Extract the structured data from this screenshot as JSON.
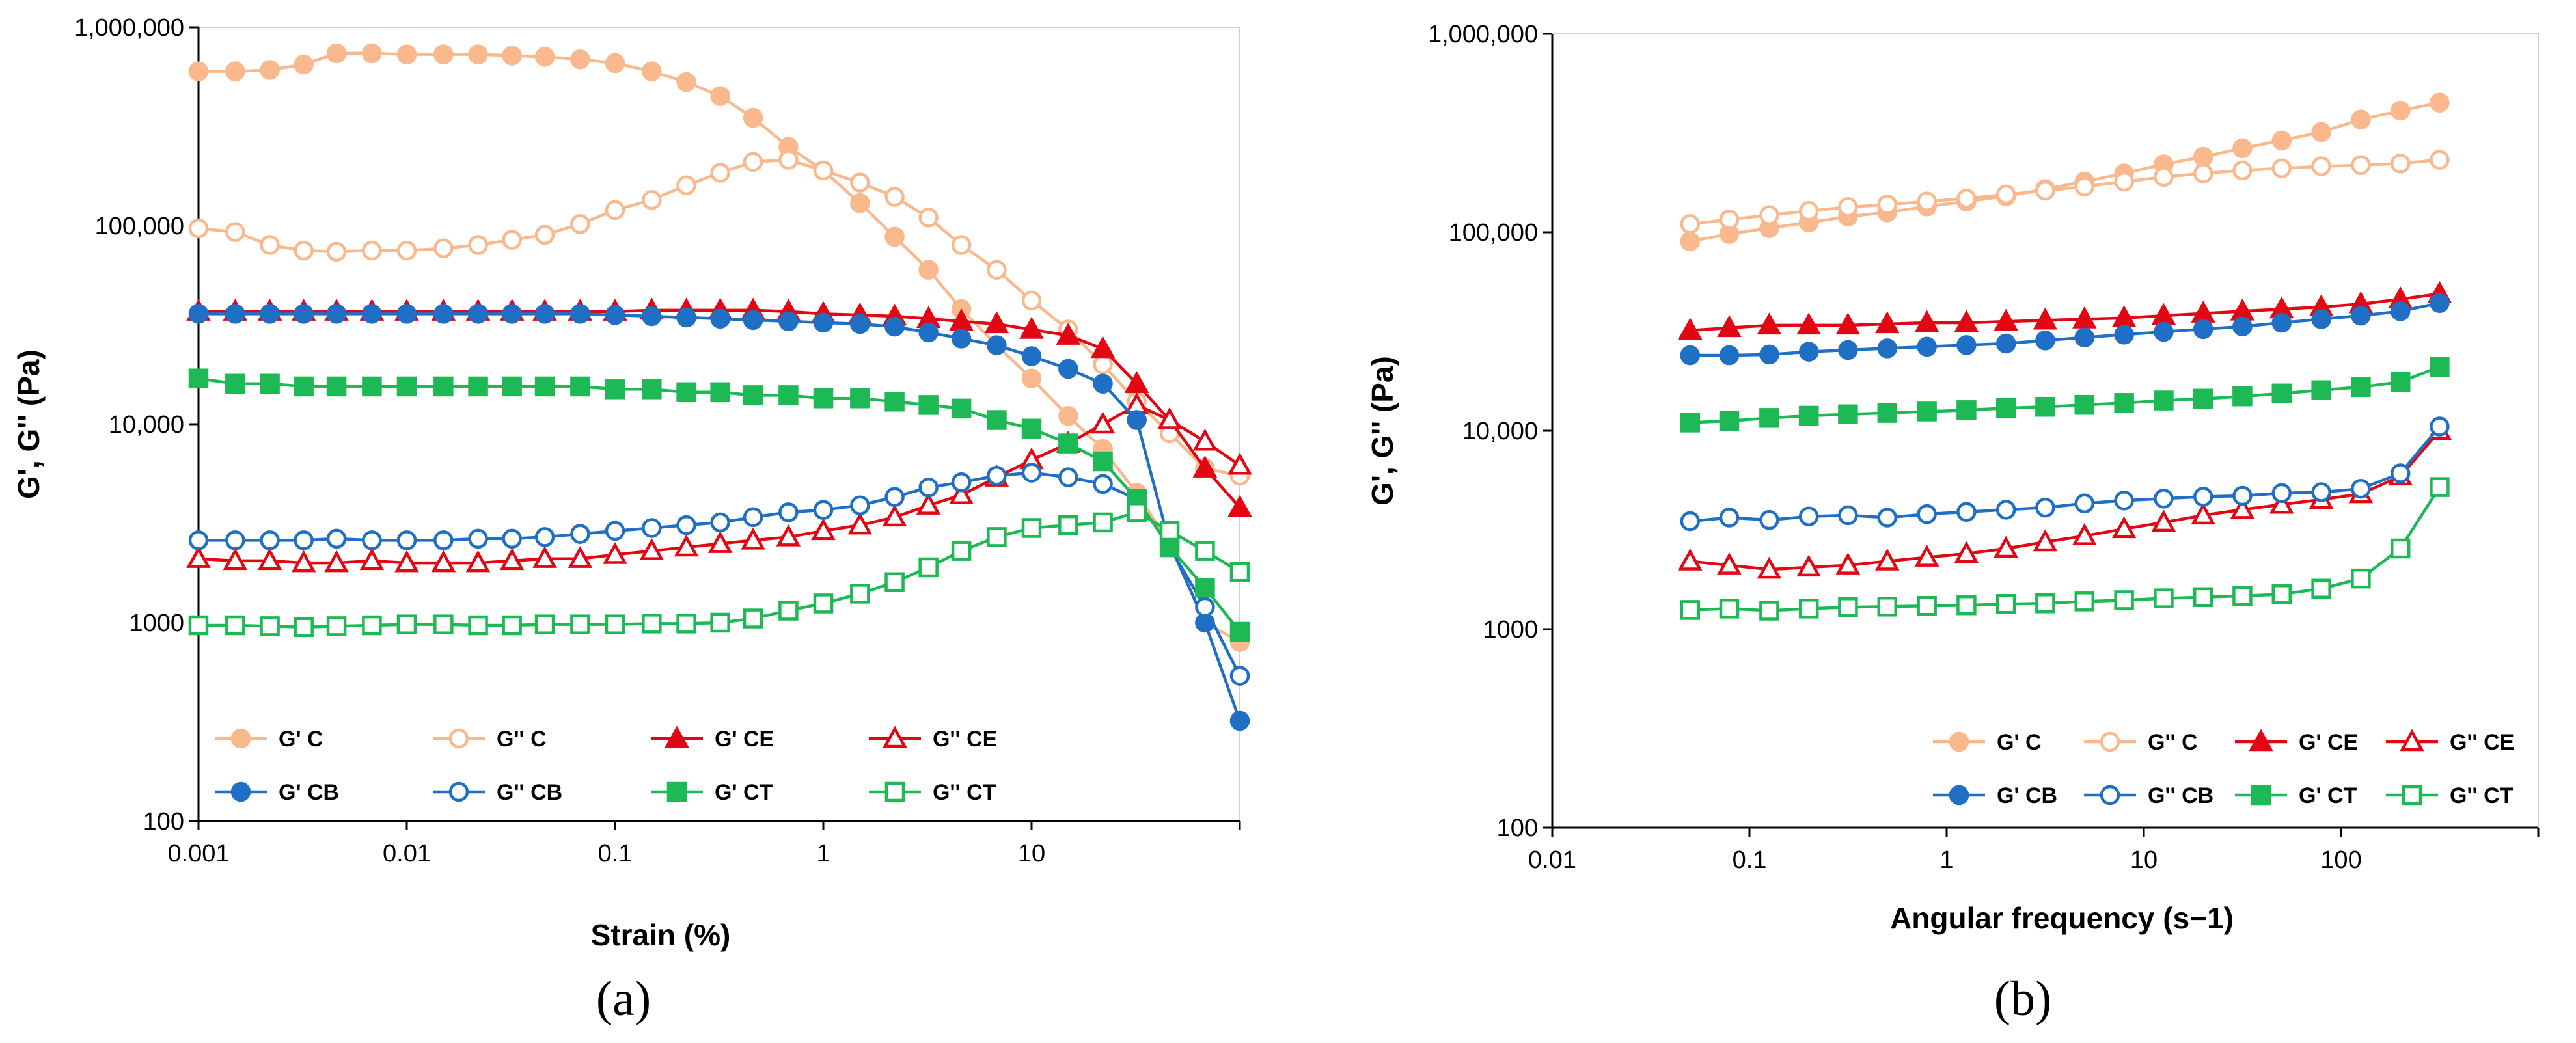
{
  "chart_data": [
    {
      "type": "scatter",
      "panel_label": "(a)",
      "xlabel": "Strain (%)",
      "ylabel": "G', G'' (Pa)",
      "x_scale": "log",
      "y_scale": "log",
      "xlim": [
        0.001,
        100
      ],
      "ylim": [
        100,
        1000000
      ],
      "x_ticks": [
        "0.001",
        "0.01",
        "0.1",
        "1",
        "10"
      ],
      "y_ticks": [
        "100",
        "1000",
        "10,000",
        "100,000",
        "1,000,000"
      ],
      "legend_position": "bottom-left",
      "series": [
        {
          "name": "G' C",
          "marker": "circle",
          "filled": true,
          "color": "#F9B98C",
          "x": [
            0.001,
            0.0015,
            0.0022,
            0.0032,
            0.0046,
            0.0068,
            0.01,
            0.015,
            0.022,
            0.032,
            0.046,
            0.068,
            0.1,
            0.15,
            0.22,
            0.32,
            0.46,
            0.68,
            1.0,
            1.5,
            2.2,
            3.2,
            4.6,
            6.8,
            10,
            15,
            22,
            32,
            46,
            68,
            100
          ],
          "y": [
            600000,
            600000,
            610000,
            650000,
            740000,
            740000,
            730000,
            730000,
            730000,
            720000,
            710000,
            690000,
            660000,
            600000,
            530000,
            450000,
            350000,
            250000,
            190000,
            130000,
            88000,
            60000,
            38000,
            25000,
            17000,
            11000,
            7500,
            4500,
            2500,
            1000,
            800
          ]
        },
        {
          "name": "G'' C",
          "marker": "circle",
          "filled": false,
          "color": "#F9B98C",
          "x": [
            0.001,
            0.0015,
            0.0022,
            0.0032,
            0.0046,
            0.0068,
            0.01,
            0.015,
            0.022,
            0.032,
            0.046,
            0.068,
            0.1,
            0.15,
            0.22,
            0.32,
            0.46,
            0.68,
            1.0,
            1.5,
            2.2,
            3.2,
            4.6,
            6.8,
            10,
            15,
            22,
            32,
            46,
            68,
            100
          ],
          "y": [
            97000,
            93000,
            80000,
            75000,
            74000,
            75000,
            75000,
            77000,
            80000,
            85000,
            90000,
            102000,
            120000,
            135000,
            160000,
            185000,
            210000,
            215000,
            190000,
            165000,
            140000,
            110000,
            80000,
            60000,
            42000,
            30000,
            20000,
            13000,
            9000,
            6000,
            5500
          ]
        },
        {
          "name": "G' CE",
          "marker": "triangle",
          "filled": true,
          "color": "#E30613",
          "x": [
            0.001,
            0.0015,
            0.0022,
            0.0032,
            0.0046,
            0.0068,
            0.01,
            0.015,
            0.022,
            0.032,
            0.046,
            0.068,
            0.1,
            0.15,
            0.22,
            0.32,
            0.46,
            0.68,
            1.0,
            1.5,
            2.2,
            3.2,
            4.6,
            6.8,
            10,
            15,
            22,
            32,
            46,
            68,
            100
          ],
          "y": [
            37000,
            37000,
            37000,
            37000,
            37000,
            37000,
            37000,
            37000,
            37000,
            37000,
            37000,
            37000,
            37000,
            37500,
            37500,
            37500,
            37500,
            37000,
            36000,
            35500,
            35000,
            34000,
            33000,
            32000,
            30000,
            28000,
            24000,
            16000,
            10500,
            6000,
            3800
          ]
        },
        {
          "name": "G'' CE",
          "marker": "triangle",
          "filled": false,
          "color": "#E30613",
          "x": [
            0.001,
            0.0015,
            0.0022,
            0.0032,
            0.0046,
            0.0068,
            0.01,
            0.015,
            0.022,
            0.032,
            0.046,
            0.068,
            0.1,
            0.15,
            0.22,
            0.32,
            0.46,
            0.68,
            1.0,
            1.5,
            2.2,
            3.2,
            4.6,
            6.8,
            10,
            15,
            22,
            32,
            46,
            68,
            100
          ],
          "y": [
            2100,
            2050,
            2050,
            2000,
            2000,
            2050,
            2000,
            2000,
            2000,
            2050,
            2100,
            2100,
            2200,
            2300,
            2400,
            2500,
            2600,
            2700,
            2900,
            3100,
            3400,
            3900,
            4400,
            5400,
            6600,
            8000,
            10000,
            12500,
            10500,
            8200,
            6200
          ]
        },
        {
          "name": "G' CB",
          "marker": "circle",
          "filled": true,
          "color": "#1F6FC5",
          "x": [
            0.001,
            0.0015,
            0.0022,
            0.0032,
            0.0046,
            0.0068,
            0.01,
            0.015,
            0.022,
            0.032,
            0.046,
            0.068,
            0.1,
            0.15,
            0.22,
            0.32,
            0.46,
            0.68,
            1.0,
            1.5,
            2.2,
            3.2,
            4.6,
            6.8,
            10,
            15,
            22,
            32,
            46,
            68,
            100
          ],
          "y": [
            36000,
            36000,
            36000,
            36000,
            36000,
            36000,
            36000,
            36000,
            36000,
            36000,
            36000,
            36000,
            35500,
            35000,
            34500,
            34000,
            33500,
            33000,
            32500,
            32000,
            31000,
            29000,
            27000,
            25000,
            22000,
            19000,
            16000,
            10500,
            2500,
            1000,
            320
          ]
        },
        {
          "name": "G'' CB",
          "marker": "circle",
          "filled": false,
          "color": "#1F6FC5",
          "x": [
            0.001,
            0.0015,
            0.0022,
            0.0032,
            0.0046,
            0.0068,
            0.01,
            0.015,
            0.022,
            0.032,
            0.046,
            0.068,
            0.1,
            0.15,
            0.22,
            0.32,
            0.46,
            0.68,
            1.0,
            1.5,
            2.2,
            3.2,
            4.6,
            6.8,
            10,
            15,
            22,
            32,
            46,
            68,
            100
          ],
          "y": [
            2600,
            2600,
            2600,
            2600,
            2650,
            2600,
            2600,
            2600,
            2650,
            2650,
            2700,
            2800,
            2900,
            3000,
            3100,
            3200,
            3400,
            3600,
            3700,
            3900,
            4300,
            4800,
            5100,
            5500,
            5700,
            5400,
            5000,
            4200,
            2400,
            1200,
            540
          ]
        },
        {
          "name": "G' CT",
          "marker": "square",
          "filled": true,
          "color": "#1DB954",
          "x": [
            0.001,
            0.0015,
            0.0022,
            0.0032,
            0.0046,
            0.0068,
            0.01,
            0.015,
            0.022,
            0.032,
            0.046,
            0.068,
            0.1,
            0.15,
            0.22,
            0.32,
            0.46,
            0.68,
            1.0,
            1.5,
            2.2,
            3.2,
            4.6,
            6.8,
            10,
            15,
            22,
            32,
            46,
            68,
            100
          ],
          "y": [
            17000,
            16000,
            16000,
            15500,
            15500,
            15500,
            15500,
            15500,
            15500,
            15500,
            15500,
            15500,
            15000,
            15000,
            14500,
            14500,
            14000,
            14000,
            13500,
            13500,
            13000,
            12500,
            12000,
            10500,
            9500,
            8000,
            6500,
            4200,
            2400,
            1500,
            900
          ]
        },
        {
          "name": "G'' CT",
          "marker": "square",
          "filled": false,
          "color": "#1DB954",
          "x": [
            0.001,
            0.0015,
            0.0022,
            0.0032,
            0.0046,
            0.0068,
            0.01,
            0.015,
            0.022,
            0.032,
            0.046,
            0.068,
            0.1,
            0.15,
            0.22,
            0.32,
            0.46,
            0.68,
            1.0,
            1.5,
            2.2,
            3.2,
            4.6,
            6.8,
            10,
            15,
            22,
            32,
            46,
            68,
            100
          ],
          "y": [
            970,
            970,
            960,
            950,
            960,
            970,
            980,
            980,
            970,
            970,
            980,
            980,
            980,
            990,
            990,
            1000,
            1050,
            1150,
            1250,
            1400,
            1600,
            1900,
            2300,
            2700,
            3000,
            3100,
            3200,
            3600,
            2900,
            2300,
            1800
          ]
        }
      ]
    },
    {
      "type": "scatter",
      "panel_label": "(b)",
      "xlabel": "Angular frequency (s−1)",
      "ylabel": "G', G'' (Pa)",
      "x_scale": "log",
      "y_scale": "log",
      "xlim": [
        0.01,
        1000
      ],
      "ylim": [
        100,
        1000000
      ],
      "x_ticks": [
        "0.01",
        "0.1",
        "1",
        "10",
        "100"
      ],
      "y_ticks": [
        "100",
        "1000",
        "10,000",
        "100,000",
        "1,000,000"
      ],
      "legend_position": "bottom-right",
      "series": [
        {
          "name": "G' C",
          "marker": "circle",
          "filled": true,
          "color": "#F9B98C",
          "x": [
            0.05,
            0.079,
            0.126,
            0.2,
            0.316,
            0.5,
            0.794,
            1.26,
            2.0,
            3.16,
            5.0,
            7.94,
            12.6,
            20,
            31.6,
            50,
            79.4,
            126,
            200,
            316
          ],
          "y": [
            90000,
            98000,
            105000,
            112000,
            120000,
            126000,
            135000,
            143000,
            152000,
            165000,
            180000,
            198000,
            220000,
            240000,
            265000,
            290000,
            320000,
            370000,
            410000,
            450000
          ]
        },
        {
          "name": "G'' C",
          "marker": "circle",
          "filled": false,
          "color": "#F9B98C",
          "x": [
            0.05,
            0.079,
            0.126,
            0.2,
            0.316,
            0.5,
            0.794,
            1.26,
            2.0,
            3.16,
            5.0,
            7.94,
            12.6,
            20,
            31.6,
            50,
            79.4,
            126,
            200,
            316
          ],
          "y": [
            110000,
            116000,
            122000,
            128000,
            134000,
            138000,
            143000,
            148000,
            155000,
            162000,
            170000,
            180000,
            190000,
            198000,
            205000,
            210000,
            215000,
            218000,
            222000,
            232000
          ]
        },
        {
          "name": "G' CE",
          "marker": "triangle",
          "filled": true,
          "color": "#E30613",
          "x": [
            0.05,
            0.079,
            0.126,
            0.2,
            0.316,
            0.5,
            0.794,
            1.26,
            2.0,
            3.16,
            5.0,
            7.94,
            12.6,
            20,
            31.6,
            50,
            79.4,
            126,
            200,
            316
          ],
          "y": [
            32000,
            33000,
            34000,
            34000,
            34000,
            34500,
            35000,
            35000,
            35500,
            36000,
            36500,
            37000,
            38000,
            39000,
            40000,
            41000,
            42000,
            43500,
            46000,
            49000
          ]
        },
        {
          "name": "G'' CE",
          "marker": "triangle",
          "filled": false,
          "color": "#E30613",
          "x": [
            0.05,
            0.079,
            0.126,
            0.2,
            0.316,
            0.5,
            0.794,
            1.26,
            2.0,
            3.16,
            5.0,
            7.94,
            12.6,
            20,
            31.6,
            50,
            79.4,
            126,
            200,
            316
          ],
          "y": [
            2200,
            2100,
            2000,
            2050,
            2100,
            2200,
            2300,
            2400,
            2550,
            2750,
            2950,
            3200,
            3450,
            3750,
            4000,
            4250,
            4500,
            4800,
            5900,
            10000
          ]
        },
        {
          "name": "G' CB",
          "marker": "circle",
          "filled": true,
          "color": "#1F6FC5",
          "x": [
            0.05,
            0.079,
            0.126,
            0.2,
            0.316,
            0.5,
            0.794,
            1.26,
            2.0,
            3.16,
            5.0,
            7.94,
            12.6,
            20,
            31.6,
            50,
            79.4,
            126,
            200,
            316
          ],
          "y": [
            24000,
            24000,
            24200,
            25000,
            25500,
            26000,
            26500,
            27000,
            27500,
            28500,
            29500,
            30500,
            31500,
            32500,
            33500,
            35000,
            36500,
            38000,
            40000,
            44000
          ]
        },
        {
          "name": "G'' CB",
          "marker": "circle",
          "filled": false,
          "color": "#1F6FC5",
          "x": [
            0.05,
            0.079,
            0.126,
            0.2,
            0.316,
            0.5,
            0.794,
            1.26,
            2.0,
            3.16,
            5.0,
            7.94,
            12.6,
            20,
            31.6,
            50,
            79.4,
            126,
            200,
            316
          ],
          "y": [
            3500,
            3650,
            3550,
            3700,
            3750,
            3650,
            3800,
            3900,
            4000,
            4100,
            4300,
            4450,
            4550,
            4650,
            4700,
            4850,
            4900,
            5100,
            6100,
            10500
          ]
        },
        {
          "name": "G' CT",
          "marker": "square",
          "filled": true,
          "color": "#1DB954",
          "x": [
            0.05,
            0.079,
            0.126,
            0.2,
            0.316,
            0.5,
            0.794,
            1.26,
            2.0,
            3.16,
            5.0,
            7.94,
            12.6,
            20,
            31.6,
            50,
            79.4,
            126,
            200,
            316
          ],
          "y": [
            11000,
            11200,
            11600,
            11900,
            12100,
            12300,
            12500,
            12700,
            13000,
            13200,
            13500,
            13800,
            14200,
            14500,
            14900,
            15400,
            16000,
            16600,
            17600,
            21000
          ]
        },
        {
          "name": "G'' CT",
          "marker": "square",
          "filled": false,
          "color": "#1DB954",
          "x": [
            0.05,
            0.079,
            0.126,
            0.2,
            0.316,
            0.5,
            0.794,
            1.26,
            2.0,
            3.16,
            5.0,
            7.94,
            12.6,
            20,
            31.6,
            50,
            79.4,
            126,
            200,
            316
          ],
          "y": [
            1250,
            1270,
            1240,
            1270,
            1290,
            1300,
            1310,
            1320,
            1340,
            1350,
            1380,
            1400,
            1430,
            1450,
            1470,
            1500,
            1600,
            1800,
            2550,
            5200
          ]
        }
      ]
    }
  ]
}
